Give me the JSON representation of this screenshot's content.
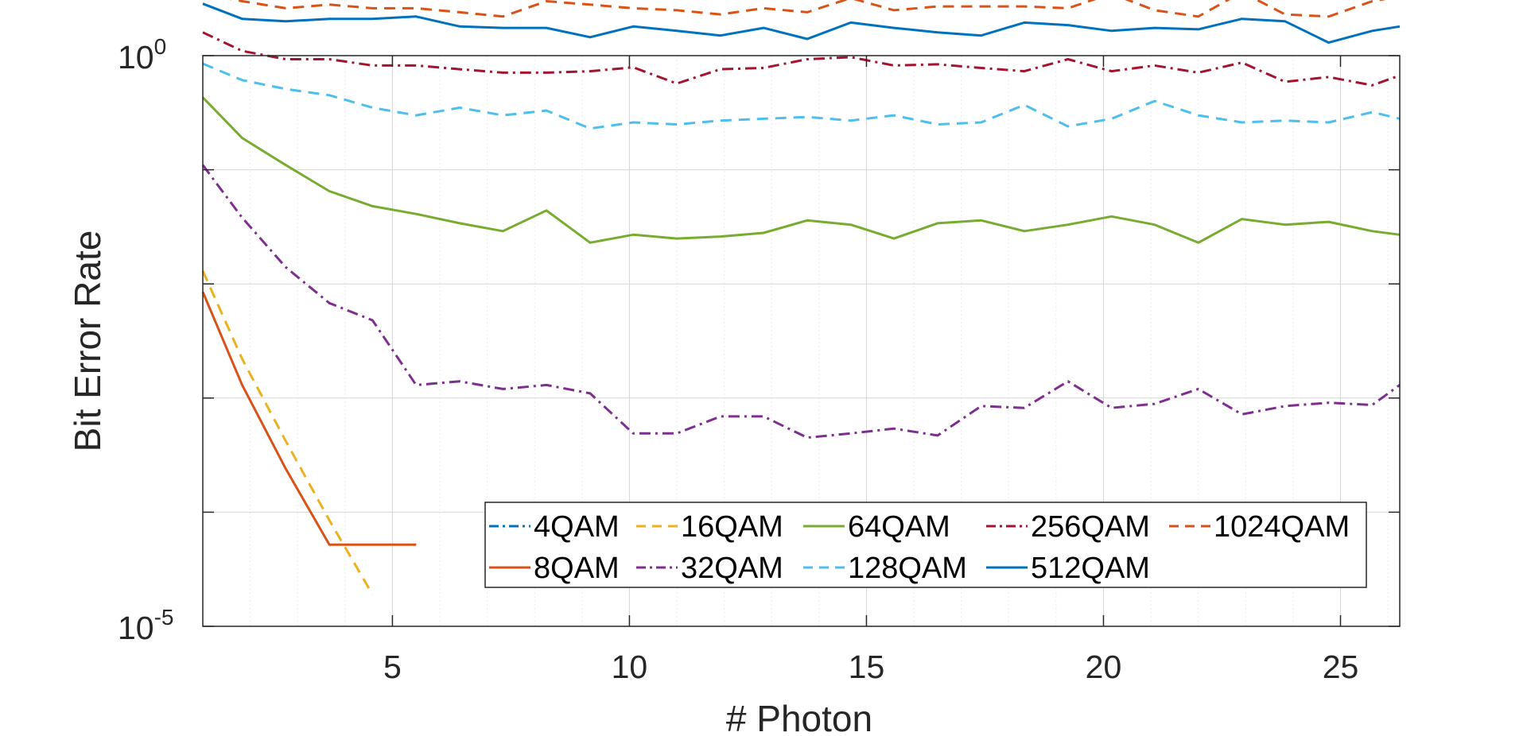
{
  "chart_data": {
    "type": "line",
    "title": "",
    "xlabel": "# Photon",
    "ylabel": "Bit Error Rate",
    "yscale": "log",
    "xlim": [
      1,
      26.25
    ],
    "ylim": [
      1e-05,
      1
    ],
    "xticks": [
      5,
      10,
      15,
      20,
      25
    ],
    "xtick_labels": [
      "5",
      "10",
      "15",
      "20",
      "25"
    ],
    "yticks": [
      1e-05,
      1
    ],
    "ytick_labels": [
      {
        "base": "10",
        "exp": "-5"
      },
      {
        "base": "10",
        "exp": "0"
      }
    ],
    "grid": true,
    "legend": {
      "location": "bottom-right",
      "columns": 5
    },
    "series": [
      {
        "name": "4QAM",
        "color": "#0072BD",
        "dash": "dash-dot",
        "x": [],
        "y": []
      },
      {
        "name": "8QAM",
        "color": "#D95319",
        "dash": "solid",
        "x": [
          1,
          1.83,
          2.75,
          3.67,
          4.58,
          5.5
        ],
        "y": [
          0.0085,
          0.0013,
          0.00024,
          5.2e-05,
          5.2e-05,
          5.2e-05
        ]
      },
      {
        "name": "16QAM",
        "color": "#EDB120",
        "dash": "dash",
        "x": [
          1,
          1.83,
          2.75,
          3.67,
          4.58
        ],
        "y": [
          0.013,
          0.0022,
          0.00042,
          8.5e-05,
          1.9e-05
        ]
      },
      {
        "name": "32QAM",
        "color": "#7E2F8E",
        "dash": "dash-dot",
        "x": [
          1,
          1.83,
          2.75,
          3.67,
          4.58,
          5.5,
          6.42,
          7.33,
          8.25,
          9.17,
          10.08,
          11,
          11.92,
          12.83,
          13.75,
          14.67,
          15.58,
          16.5,
          17.42,
          18.33,
          19.25,
          20.17,
          21.08,
          22,
          22.92,
          23.83,
          24.75,
          25.67,
          26.25
        ],
        "y": [
          0.11,
          0.038,
          0.014,
          0.0068,
          0.0048,
          0.0013,
          0.0014,
          0.0012,
          0.0013,
          0.0011,
          0.00049,
          0.00049,
          0.00069,
          0.00069,
          0.00045,
          0.00049,
          0.00054,
          0.00047,
          0.00085,
          0.00082,
          0.0014,
          0.00082,
          0.00089,
          0.0012,
          0.00072,
          0.00085,
          0.00091,
          0.00087,
          0.0013
        ]
      },
      {
        "name": "64QAM",
        "color": "#77AC30",
        "dash": "solid",
        "x": [
          1,
          1.83,
          2.75,
          3.67,
          4.58,
          5.5,
          6.42,
          7.33,
          8.25,
          9.17,
          10.08,
          11,
          11.92,
          12.83,
          13.75,
          14.67,
          15.58,
          16.5,
          17.42,
          18.33,
          19.25,
          20.17,
          21.08,
          22,
          22.92,
          23.83,
          24.75,
          25.67,
          26.25
        ],
        "y": [
          0.43,
          0.19,
          0.11,
          0.065,
          0.048,
          0.041,
          0.034,
          0.029,
          0.044,
          0.023,
          0.027,
          0.025,
          0.026,
          0.028,
          0.036,
          0.033,
          0.025,
          0.034,
          0.036,
          0.029,
          0.033,
          0.039,
          0.033,
          0.023,
          0.037,
          0.033,
          0.035,
          0.029,
          0.027
        ]
      },
      {
        "name": "128QAM",
        "color": "#4DBEEE",
        "dash": "dash",
        "x": [
          1,
          1.83,
          2.75,
          3.67,
          4.58,
          5.5,
          6.42,
          7.33,
          8.25,
          9.17,
          10.08,
          11,
          11.92,
          12.83,
          13.75,
          14.67,
          15.58,
          16.5,
          17.42,
          18.33,
          19.25,
          20.17,
          21.08,
          22,
          22.92,
          23.83,
          24.75,
          25.67,
          26.25
        ],
        "y": [
          0.85,
          0.61,
          0.51,
          0.45,
          0.35,
          0.3,
          0.35,
          0.3,
          0.33,
          0.23,
          0.26,
          0.25,
          0.27,
          0.28,
          0.29,
          0.27,
          0.3,
          0.25,
          0.26,
          0.37,
          0.24,
          0.28,
          0.4,
          0.3,
          0.26,
          0.27,
          0.26,
          0.32,
          0.28
        ]
      },
      {
        "name": "256QAM",
        "color": "#A2142F",
        "dash": "dash-dot",
        "x": [
          1,
          1.83,
          2.75,
          3.67,
          4.58,
          5.5,
          6.42,
          7.33,
          8.25,
          9.17,
          10.08,
          11,
          11.92,
          12.83,
          13.75,
          14.67,
          15.58,
          16.5,
          17.42,
          18.33,
          19.25,
          20.17,
          21.08,
          22,
          22.92,
          23.83,
          24.75,
          25.67,
          26.25
        ],
        "y": [
          1.6,
          1.1,
          0.93,
          0.93,
          0.82,
          0.82,
          0.76,
          0.71,
          0.71,
          0.73,
          0.79,
          0.57,
          0.76,
          0.78,
          0.93,
          0.97,
          0.82,
          0.84,
          0.78,
          0.73,
          0.93,
          0.73,
          0.82,
          0.71,
          0.87,
          0.59,
          0.65,
          0.55,
          0.67
        ]
      },
      {
        "name": "512QAM",
        "color": "#0072BD",
        "dash": "solid",
        "x": [
          1,
          1.83,
          2.75,
          3.67,
          4.58,
          5.5,
          6.42,
          7.33,
          8.25,
          9.17,
          10.08,
          11,
          11.92,
          12.83,
          13.75,
          14.67,
          15.58,
          16.5,
          17.42,
          18.33,
          19.25,
          20.17,
          21.08,
          22,
          22.92,
          23.83,
          24.75,
          25.67,
          26.25
        ],
        "y": [
          2.85,
          2.1,
          2.0,
          2.1,
          2.1,
          2.2,
          1.8,
          1.75,
          1.75,
          1.45,
          1.8,
          1.65,
          1.5,
          1.75,
          1.4,
          1.95,
          1.75,
          1.6,
          1.5,
          1.95,
          1.85,
          1.65,
          1.75,
          1.7,
          2.1,
          2.0,
          1.3,
          1.65,
          1.8
        ]
      },
      {
        "name": "1024QAM",
        "color": "#D95319",
        "dash": "dash",
        "x": [
          1,
          1.83,
          2.75,
          3.67,
          4.58,
          5.5,
          6.42,
          7.33,
          8.25,
          9.17,
          10.08,
          11,
          11.92,
          12.83,
          13.75,
          14.67,
          15.58,
          16.5,
          17.42,
          18.33,
          19.25,
          20.17,
          21.08,
          22,
          22.92,
          23.83,
          24.75,
          25.67,
          26.25
        ],
        "y": [
          3.5,
          3.0,
          2.6,
          2.8,
          2.6,
          2.6,
          2.4,
          2.2,
          3.0,
          2.8,
          2.6,
          2.5,
          2.3,
          2.6,
          2.4,
          3.2,
          2.5,
          2.7,
          2.7,
          2.7,
          2.6,
          3.5,
          2.5,
          2.2,
          3.6,
          2.3,
          2.2,
          3.0,
          3.3
        ]
      }
    ]
  }
}
